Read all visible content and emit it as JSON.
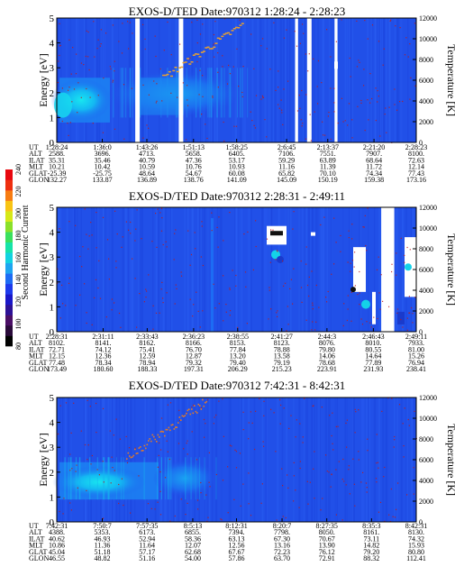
{
  "colorbar": {
    "label": "Second Harmonic Current",
    "ticks": [
      "80",
      "100",
      "120",
      "140",
      "160",
      "180",
      "200",
      "220",
      "240"
    ],
    "colors": [
      "#000000",
      "#2a0a3a",
      "#4a0e66",
      "#2d1196",
      "#1a17c8",
      "#1d3aec",
      "#1e6cf4",
      "#1ea5f0",
      "#12d2e0",
      "#16e3a8",
      "#3ae05e",
      "#8ae02a",
      "#d6e818",
      "#f8c414",
      "#f77c12",
      "#ee3010",
      "#e80810"
    ]
  },
  "chart_data": [
    {
      "type": "heatmap",
      "title": "EXOS-D/TED   Date:970312   1:28:24 - 2:28:23",
      "ylabel": "Energy [eV]",
      "y2label": "Temperature [K]",
      "ylim": [
        0,
        5
      ],
      "y2lim": [
        0,
        12000
      ],
      "yticks": [
        "0",
        "1",
        "2",
        "3",
        "4",
        "5"
      ],
      "y2ticks": [
        "0",
        "2000",
        "4000",
        "6000",
        "8000",
        "10000",
        "12000"
      ],
      "x": [
        "1:28:24",
        "1:36:0",
        "1:43:26",
        "1:51:13",
        "1:58:25",
        "2:6:45",
        "2:13:37",
        "2:21:20",
        "2:28:23"
      ],
      "rows": [
        {
          "label": "UT",
          "values": [
            "1:28:24",
            "1:36:0",
            "1:43:26",
            "1:51:13",
            "1:58:25",
            "2:6:45",
            "2:13:37",
            "2:21:20",
            "2:28:23"
          ]
        },
        {
          "label": "ALT",
          "values": [
            "2588.",
            "3696.",
            "4713.",
            "5658.",
            "6405.",
            "7106.",
            "7551.",
            "7907.",
            "8100."
          ]
        },
        {
          "label": "ILAT",
          "values": [
            "35.31",
            "35.46",
            "40.79",
            "47.36",
            "53.17",
            "59.29",
            "63.89",
            "68.64",
            "72.63"
          ]
        },
        {
          "label": "MLT",
          "values": [
            "10.21",
            "10.42",
            "10.59",
            "10.76",
            "10.93",
            "11.16",
            "11.39",
            "11.72",
            "12.14"
          ]
        },
        {
          "label": "GLAT",
          "values": [
            "-25.39",
            "-25.75",
            "48.64",
            "54.67",
            "60.08",
            "65.82",
            "70.10",
            "74.34",
            "77.43"
          ]
        },
        {
          "label": "GLON",
          "values": [
            "132.27",
            "133.87",
            "136.89",
            "138.76",
            "141.09",
            "145.09",
            "150.19",
            "159.38",
            "173.16"
          ]
        }
      ],
      "temperature_trace": "red-noise",
      "data_gaps_ut": [
        [
          "1:41:30",
          "1:42:15"
        ],
        [
          "1:48:45",
          "1:49:30"
        ],
        [
          "2:8:10",
          "2:8:40"
        ],
        [
          "2:10:10",
          "2:10:55"
        ],
        [
          "2:14:45",
          "2:15:15"
        ]
      ]
    },
    {
      "type": "heatmap",
      "title": "EXOS-D/TED   Date:970312   2:28:31 - 2:49:11",
      "ylabel": "Energy [eV]",
      "y2label": "Temperature [K]",
      "ylim": [
        0,
        5
      ],
      "y2lim": [
        0,
        12000
      ],
      "yticks": [
        "0",
        "1",
        "2",
        "3",
        "4",
        "5"
      ],
      "y2ticks": [
        "0",
        "2000",
        "4000",
        "6000",
        "8000",
        "10000",
        "12000"
      ],
      "x": [
        "2:28:31",
        "2:31:11",
        "2:33:43",
        "2:36:23",
        "2:38:55",
        "2:41:27",
        "2:44:3",
        "2:46:43",
        "2:49:11"
      ],
      "rows": [
        {
          "label": "UT",
          "values": [
            "2:28:31",
            "2:31:11",
            "2:33:43",
            "2:36:23",
            "2:38:55",
            "2:41:27",
            "2:44:3",
            "2:46:43",
            "2:49:11"
          ]
        },
        {
          "label": "ALT",
          "values": [
            "8102.",
            "8141.",
            "8162.",
            "8166.",
            "8153.",
            "8123.",
            "8076.",
            "8010.",
            "7933."
          ]
        },
        {
          "label": "ILAT",
          "values": [
            "72.71",
            "74.12",
            "75.41",
            "76.70",
            "77.84",
            "78.88",
            "79.80",
            "80.55",
            "81.00"
          ]
        },
        {
          "label": "MLT",
          "values": [
            "12.15",
            "12.36",
            "12.59",
            "12.87",
            "13.20",
            "13.58",
            "14.06",
            "14.64",
            "15.26"
          ]
        },
        {
          "label": "GLAT",
          "values": [
            "77.48",
            "78.34",
            "78.94",
            "79.32",
            "79.40",
            "79.19",
            "78.68",
            "77.89",
            "76.94"
          ]
        },
        {
          "label": "GLON",
          "values": [
            "173.49",
            "180.60",
            "188.33",
            "197.31",
            "206.29",
            "215.23",
            "223.91",
            "231.93",
            "238.41"
          ]
        }
      ],
      "temperature_trace": "red-noise",
      "data_gaps_ut": [
        [
          "2:47:10",
          "2:47:55"
        ]
      ]
    },
    {
      "type": "heatmap",
      "title": "EXOS-D/TED   Date:970312   7:42:31 - 8:42:31",
      "ylabel": "Energy [eV]",
      "y2label": "Temperature [K]",
      "ylim": [
        0,
        5
      ],
      "y2lim": [
        0,
        12000
      ],
      "yticks": [
        "0",
        "1",
        "2",
        "3",
        "4",
        "5"
      ],
      "y2ticks": [
        "0",
        "2000",
        "4000",
        "6000",
        "8000",
        "10000",
        "12000"
      ],
      "x": [
        "7:42:31",
        "7:50:7",
        "7:57:35",
        "8:5:13",
        "8:12:31",
        "8:20:7",
        "8:27:35",
        "8:35:3",
        "8:42:31"
      ],
      "rows": [
        {
          "label": "UT",
          "values": [
            "7:42:31",
            "7:50:7",
            "7:57:35",
            "8:5:13",
            "8:12:31",
            "8:20:7",
            "8:27:35",
            "8:35:3",
            "8:42:31"
          ]
        },
        {
          "label": "ALT",
          "values": [
            "4388.",
            "5353.",
            "6173.",
            "6855.",
            "7394.",
            "7798.",
            "8050.",
            "8161.",
            "8130."
          ]
        },
        {
          "label": "ILAT",
          "values": [
            "40.62",
            "46.93",
            "52.94",
            "58.36",
            "63.13",
            "67.30",
            "70.67",
            "73.11",
            "74.32"
          ]
        },
        {
          "label": "MLT",
          "values": [
            "10.86",
            "11.36",
            "11.64",
            "12.07",
            "12.56",
            "13.16",
            "13.90",
            "14.82",
            "15.93"
          ]
        },
        {
          "label": "GLAT",
          "values": [
            "45.04",
            "51.18",
            "57.17",
            "62.68",
            "67.67",
            "72.23",
            "76.12",
            "79.20",
            "80.80"
          ]
        },
        {
          "label": "GLON",
          "values": [
            "46.55",
            "48.82",
            "51.16",
            "54.00",
            "57.86",
            "63.70",
            "72.91",
            "88.32",
            "112.41"
          ]
        }
      ],
      "temperature_trace": "red-noise",
      "data_gaps_ut": []
    }
  ]
}
